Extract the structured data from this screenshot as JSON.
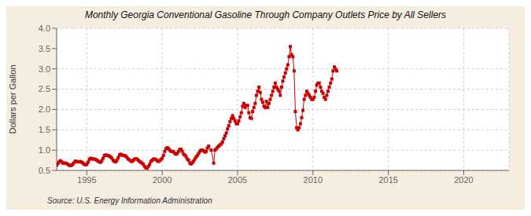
{
  "chart_data": {
    "type": "line",
    "title": "Monthly Georgia Conventional Gasoline Through Company Outlets Price by All Sellers",
    "y_label": "Dollars per Gallon",
    "annotations": [
      "Source: U.S. Energy Information Administration"
    ],
    "color": "#cc0000",
    "marker": "square",
    "line_style": "solid",
    "grid": true,
    "xlim": [
      1993.0,
      2023.0
    ],
    "ylim": [
      0.5,
      4.0
    ],
    "xticks": [
      1995,
      2000,
      2005,
      2010,
      2015,
      2020
    ],
    "yticks": [
      0.5,
      {
        "value": 1.0,
        "label": "1.0"
      },
      1.5,
      {
        "value": 2.0,
        "label": "2.0"
      },
      2.5,
      {
        "value": 3.0,
        "label": "3.0"
      },
      3.5,
      {
        "value": 4.0,
        "label": "4.0"
      }
    ],
    "x": [
      1993.0,
      1993.083,
      1993.167,
      1993.25,
      1993.333,
      1993.417,
      1993.5,
      1993.583,
      1993.667,
      1993.75,
      1993.833,
      1993.917,
      1994.0,
      1994.083,
      1994.167,
      1994.25,
      1994.333,
      1994.417,
      1994.5,
      1994.583,
      1994.667,
      1994.75,
      1994.833,
      1994.917,
      1995.0,
      1995.083,
      1995.167,
      1995.25,
      1995.333,
      1995.417,
      1995.5,
      1995.583,
      1995.667,
      1995.75,
      1995.833,
      1995.917,
      1996.0,
      1996.083,
      1996.167,
      1996.25,
      1996.333,
      1996.417,
      1996.5,
      1996.583,
      1996.667,
      1996.75,
      1996.833,
      1996.917,
      1997.0,
      1997.083,
      1997.167,
      1997.25,
      1997.333,
      1997.417,
      1997.5,
      1997.583,
      1997.667,
      1997.75,
      1997.833,
      1997.917,
      1998.0,
      1998.083,
      1998.167,
      1998.25,
      1998.333,
      1998.417,
      1998.5,
      1998.583,
      1998.667,
      1998.75,
      1998.833,
      1998.917,
      1999.0,
      1999.083,
      1999.167,
      1999.25,
      1999.333,
      1999.417,
      1999.5,
      1999.583,
      1999.667,
      1999.75,
      1999.833,
      1999.917,
      2000.0,
      2000.083,
      2000.167,
      2000.25,
      2000.333,
      2000.417,
      2000.5,
      2000.583,
      2000.667,
      2000.75,
      2000.833,
      2000.917,
      2001.0,
      2001.083,
      2001.167,
      2001.25,
      2001.333,
      2001.417,
      2001.5,
      2001.583,
      2001.667,
      2001.75,
      2001.833,
      2001.917,
      2002.0,
      2002.083,
      2002.167,
      2002.25,
      2002.333,
      2002.417,
      2002.5,
      2002.583,
      2002.667,
      2002.75,
      2002.833,
      2002.917,
      2003.0,
      2003.083,
      2003.25,
      2003.417,
      2003.5,
      2003.583,
      2003.667,
      2003.75,
      2003.833,
      2003.917,
      2004.0,
      2004.083,
      2004.167,
      2004.25,
      2004.333,
      2004.417,
      2004.5,
      2004.583,
      2004.667,
      2004.75,
      2004.833,
      2004.917,
      2005.0,
      2005.083,
      2005.167,
      2005.25,
      2005.333,
      2005.417,
      2005.5,
      2005.583,
      2005.667,
      2005.75,
      2005.833,
      2005.917,
      2006.0,
      2006.083,
      2006.167,
      2006.25,
      2006.333,
      2006.417,
      2006.5,
      2006.583,
      2006.667,
      2006.75,
      2006.833,
      2006.917,
      2007.0,
      2007.083,
      2007.167,
      2007.25,
      2007.333,
      2007.417,
      2007.5,
      2007.583,
      2007.667,
      2007.75,
      2007.833,
      2007.917,
      2008.0,
      2008.083,
      2008.167,
      2008.25,
      2008.333,
      2008.417,
      2008.5,
      2008.583,
      2008.667,
      2008.75,
      2008.833,
      2008.917,
      2009.0,
      2009.083,
      2009.167,
      2009.25,
      2009.333,
      2009.417,
      2009.5,
      2009.583,
      2009.667,
      2009.75,
      2009.833,
      2009.917,
      2010.0,
      2010.083,
      2010.167,
      2010.25,
      2010.333,
      2010.417,
      2010.5,
      2010.583,
      2010.667,
      2010.75,
      2010.833,
      2010.917,
      2011.0,
      2011.083,
      2011.167,
      2011.25,
      2011.333,
      2011.417,
      2011.5,
      2011.583
    ],
    "values": [
      0.63,
      0.67,
      0.71,
      0.74,
      0.71,
      0.68,
      0.68,
      0.68,
      0.67,
      0.65,
      0.63,
      0.62,
      0.63,
      0.66,
      0.7,
      0.73,
      0.72,
      0.71,
      0.71,
      0.72,
      0.7,
      0.68,
      0.65,
      0.64,
      0.65,
      0.7,
      0.77,
      0.8,
      0.79,
      0.78,
      0.78,
      0.77,
      0.75,
      0.73,
      0.71,
      0.7,
      0.74,
      0.8,
      0.87,
      0.88,
      0.87,
      0.87,
      0.85,
      0.83,
      0.8,
      0.75,
      0.72,
      0.71,
      0.75,
      0.81,
      0.88,
      0.9,
      0.88,
      0.87,
      0.87,
      0.85,
      0.82,
      0.78,
      0.76,
      0.73,
      0.72,
      0.75,
      0.78,
      0.79,
      0.78,
      0.75,
      0.72,
      0.7,
      0.68,
      0.65,
      0.6,
      0.56,
      0.56,
      0.6,
      0.65,
      0.72,
      0.75,
      0.78,
      0.78,
      0.77,
      0.74,
      0.72,
      0.74,
      0.77,
      0.8,
      0.87,
      0.97,
      1.03,
      1.06,
      1.04,
      1.0,
      0.97,
      0.97,
      0.96,
      0.92,
      0.9,
      0.92,
      0.97,
      1.02,
      1.02,
      0.97,
      0.9,
      0.88,
      0.84,
      0.78,
      0.75,
      0.68,
      0.66,
      0.69,
      0.73,
      0.78,
      0.83,
      0.87,
      0.92,
      0.97,
      1.0,
      1.0,
      0.98,
      0.95,
      0.97,
      1.05,
      1.1,
      1.0,
      0.68,
      1.0,
      1.03,
      1.07,
      1.1,
      1.13,
      1.15,
      1.2,
      1.28,
      1.35,
      1.42,
      1.52,
      1.6,
      1.7,
      1.78,
      1.85,
      1.78,
      1.72,
      1.65,
      1.65,
      1.72,
      1.82,
      1.92,
      2.08,
      2.15,
      2.05,
      2.1,
      2.1,
      1.92,
      1.8,
      1.78,
      1.95,
      2.05,
      2.15,
      2.35,
      2.45,
      2.55,
      2.42,
      2.25,
      2.18,
      2.08,
      2.05,
      2.2,
      2.05,
      2.15,
      2.25,
      2.35,
      2.45,
      2.55,
      2.65,
      2.55,
      2.5,
      2.45,
      2.35,
      2.55,
      2.7,
      2.8,
      2.9,
      3.0,
      3.1,
      3.3,
      3.55,
      3.35,
      3.3,
      2.95,
      1.95,
      1.55,
      1.5,
      1.55,
      1.65,
      1.8,
      1.98,
      2.25,
      2.35,
      2.45,
      2.4,
      2.35,
      2.3,
      2.25,
      2.25,
      2.3,
      2.45,
      2.6,
      2.65,
      2.65,
      2.55,
      2.45,
      2.4,
      2.3,
      2.25,
      2.35,
      2.45,
      2.55,
      2.65,
      2.75,
      2.95,
      3.05,
      3.0,
      2.95
    ]
  }
}
